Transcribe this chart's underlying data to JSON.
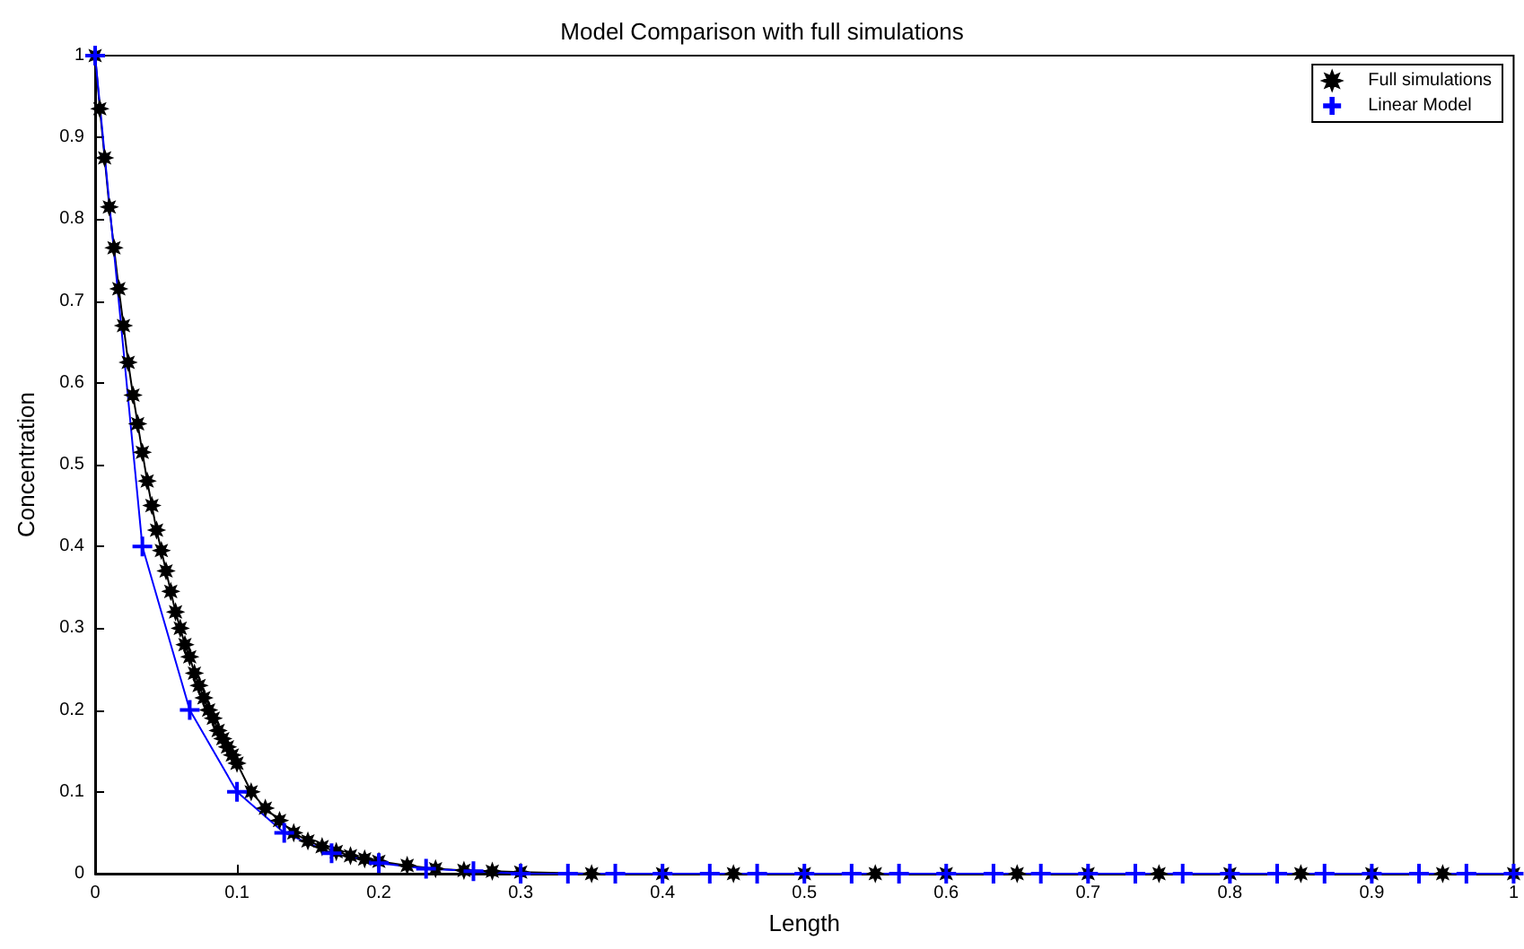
{
  "chart_data": {
    "type": "line",
    "title": "Model Comparison with full simulations",
    "xlabel": "Length",
    "ylabel": "Concentration",
    "xlim": [
      0,
      1
    ],
    "ylim": [
      0,
      1
    ],
    "xticks": [
      0,
      0.1,
      0.2,
      0.3,
      0.4,
      0.5,
      0.6,
      0.7,
      0.8,
      0.9,
      1
    ],
    "yticks": [
      0,
      0.1,
      0.2,
      0.3,
      0.4,
      0.5,
      0.6,
      0.7,
      0.8,
      0.9,
      1
    ],
    "grid": false,
    "legend": "top right",
    "line_style": "solid",
    "series": [
      {
        "name": "Full simulations",
        "color": "#000000",
        "marker": "star",
        "x": [
          0,
          0.0033,
          0.0067,
          0.01,
          0.0133,
          0.0167,
          0.02,
          0.0233,
          0.0267,
          0.03,
          0.0333,
          0.0367,
          0.04,
          0.0433,
          0.0467,
          0.05,
          0.0533,
          0.0567,
          0.06,
          0.0633,
          0.0667,
          0.07,
          0.0733,
          0.0767,
          0.08,
          0.0833,
          0.0867,
          0.09,
          0.0933,
          0.0967,
          0.1,
          0.11,
          0.12,
          0.13,
          0.14,
          0.15,
          0.16,
          0.17,
          0.18,
          0.19,
          0.2,
          0.22,
          0.24,
          0.26,
          0.28,
          0.3,
          0.35,
          0.4,
          0.45,
          0.5,
          0.55,
          0.6,
          0.65,
          0.7,
          0.75,
          0.8,
          0.85,
          0.9,
          0.95,
          1
        ],
        "values": [
          1,
          0.935,
          0.875,
          0.815,
          0.765,
          0.715,
          0.67,
          0.625,
          0.585,
          0.55,
          0.515,
          0.48,
          0.45,
          0.42,
          0.395,
          0.37,
          0.345,
          0.32,
          0.3,
          0.28,
          0.265,
          0.245,
          0.23,
          0.215,
          0.2,
          0.19,
          0.175,
          0.165,
          0.155,
          0.145,
          0.135,
          0.1,
          0.08,
          0.065,
          0.05,
          0.04,
          0.033,
          0.027,
          0.022,
          0.018,
          0.015,
          0.01,
          0.006,
          0.004,
          0.003,
          0.002,
          0,
          0,
          0,
          0,
          0,
          0,
          0,
          0,
          0,
          0,
          0,
          0,
          0,
          0
        ]
      },
      {
        "name": "Linear Model",
        "color": "#0000ff",
        "marker": "cross",
        "x": [
          0,
          0.0333,
          0.0667,
          0.1,
          0.1333,
          0.1667,
          0.2,
          0.2333,
          0.2667,
          0.3,
          0.3333,
          0.3667,
          0.4,
          0.4333,
          0.4667,
          0.5,
          0.5333,
          0.5667,
          0.6,
          0.6333,
          0.6667,
          0.7,
          0.7333,
          0.7667,
          0.8,
          0.8333,
          0.8667,
          0.9,
          0.9333,
          0.9667,
          1
        ],
        "values": [
          1,
          0.4,
          0.2,
          0.1,
          0.05,
          0.025,
          0.013,
          0.006,
          0.003,
          0,
          0,
          0,
          0,
          0,
          0,
          0,
          0,
          0,
          0,
          0,
          0,
          0,
          0,
          0,
          0,
          0,
          0,
          0,
          0,
          0,
          0
        ]
      }
    ]
  }
}
